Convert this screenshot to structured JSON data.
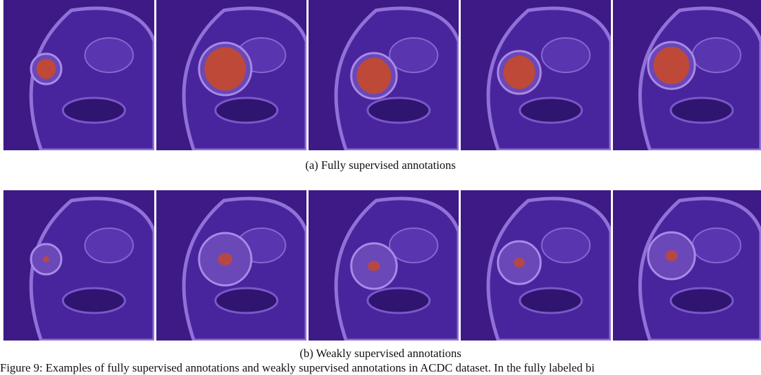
{
  "figure": {
    "subcaptions": [
      "(a) Fully supervised annotations",
      "(b) Weakly supervised annotations"
    ],
    "caption": "Figure 9: Examples of fully supervised annotations and weakly supervised annotations in ACDC dataset. In the fully labeled bi"
  }
}
